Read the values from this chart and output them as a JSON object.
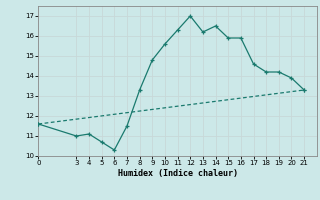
{
  "title": "",
  "xlabel": "Humidex (Indice chaleur)",
  "ylabel": "",
  "bg_color": "#cce8e8",
  "grid_color": "#c8d8d8",
  "line_color": "#1a7a6e",
  "xlim": [
    0,
    22
  ],
  "ylim": [
    10,
    17.5
  ],
  "xticks": [
    0,
    3,
    4,
    5,
    6,
    7,
    8,
    9,
    10,
    11,
    12,
    13,
    14,
    15,
    16,
    17,
    18,
    19,
    20,
    21
  ],
  "yticks": [
    10,
    11,
    12,
    13,
    14,
    15,
    16,
    17
  ],
  "line1_x": [
    0,
    3,
    4,
    5,
    6,
    7,
    8,
    9,
    10,
    11,
    12,
    13,
    14,
    15,
    16,
    17,
    18,
    19,
    20,
    21
  ],
  "line1_y": [
    11.6,
    11.0,
    11.1,
    10.7,
    10.3,
    11.5,
    13.3,
    14.8,
    15.6,
    16.3,
    17.0,
    16.2,
    16.5,
    15.9,
    15.9,
    14.6,
    14.2,
    14.2,
    13.9,
    13.3
  ],
  "line2_x": [
    0,
    21
  ],
  "line2_y": [
    11.6,
    13.3
  ]
}
